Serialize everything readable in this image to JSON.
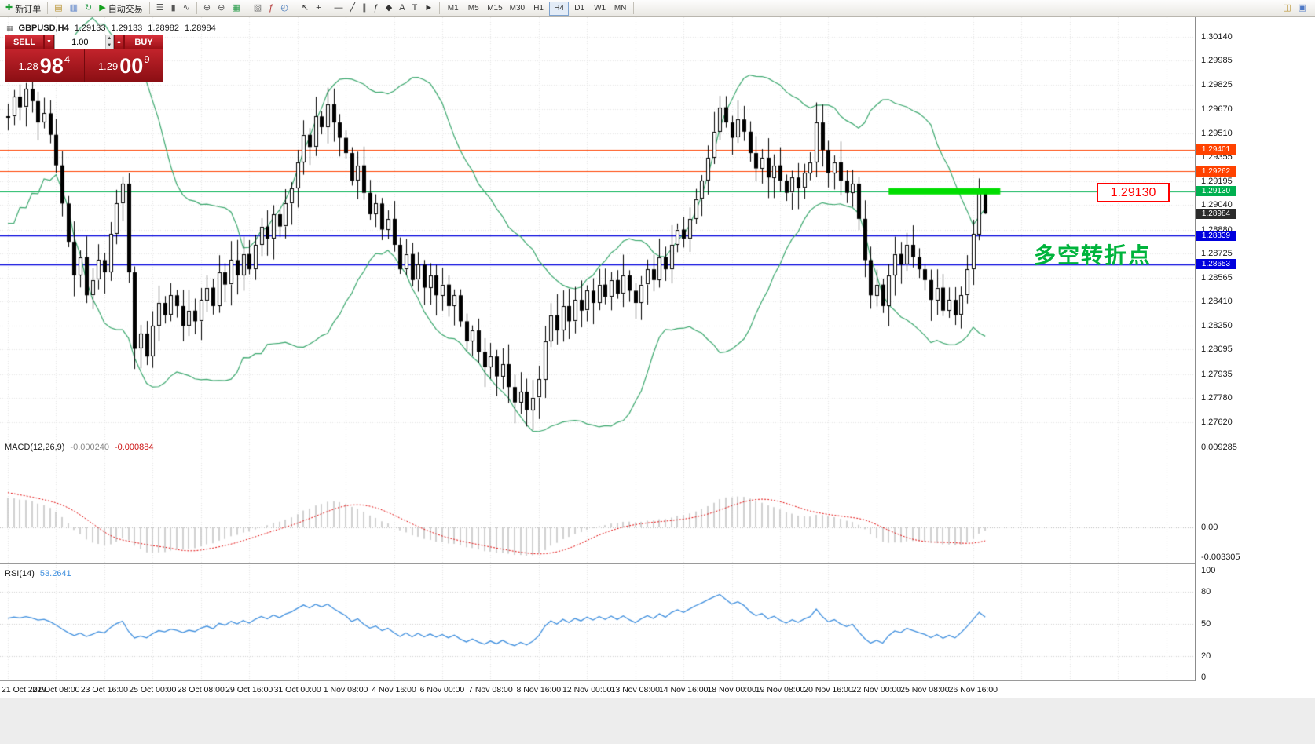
{
  "window": {
    "title": "GBPUSD,H4"
  },
  "colors": {
    "grid": "#e4e4e4",
    "candle_outline": "#000000",
    "bull_body": "#ffffff",
    "bear_body": "#000000",
    "bollinger": "#3aa76d",
    "level_orange": "#ff4200",
    "level_green": "#00b050",
    "level_blue": "#0000dd",
    "current_tag_bg": "#2b2b2b",
    "macd_histogram": "#bdbdbd",
    "macd_signal": "#e00000",
    "rsi_line": "#3f8fde",
    "highlight_green": "#00dd00",
    "annotation_green": "#00b43c",
    "callout_red": "#ff0000"
  },
  "toolbar": {
    "items": [
      {
        "name": "new-order",
        "glyph": "✚",
        "color": "#1d9e34",
        "label": "新订单"
      },
      {
        "sep": true
      },
      {
        "name": "charts-cascade",
        "glyph": "▤",
        "color": "#b8912f"
      },
      {
        "name": "profiles",
        "glyph": "▥",
        "color": "#4f79c6"
      },
      {
        "name": "refresh",
        "glyph": "↻",
        "color": "#2e9e4f"
      },
      {
        "name": "autotrade",
        "glyph": "▶",
        "color": "#15a01e",
        "label": "自动交易"
      },
      {
        "sep": true
      },
      {
        "name": "chart-bars",
        "glyph": "☰",
        "color": "#555555"
      },
      {
        "name": "chart-candles",
        "glyph": "▮",
        "color": "#555555"
      },
      {
        "name": "chart-line",
        "glyph": "∿",
        "color": "#555555"
      },
      {
        "sep": true
      },
      {
        "name": "zoom-in",
        "glyph": "⊕",
        "color": "#555555"
      },
      {
        "name": "zoom-out",
        "glyph": "⊖",
        "color": "#555555"
      },
      {
        "name": "tile-windows",
        "glyph": "▦",
        "color": "#2e9e4f"
      },
      {
        "sep": true
      },
      {
        "name": "navigator",
        "glyph": "▧",
        "color": "#777777"
      },
      {
        "name": "indicators-list",
        "glyph": "ƒ",
        "color": "#b03030"
      },
      {
        "name": "period-settings",
        "glyph": "◴",
        "color": "#3f74b8"
      },
      {
        "sep": true
      },
      {
        "name": "cursor",
        "glyph": "↖",
        "color": "#333333"
      },
      {
        "name": "crosshair",
        "glyph": "+",
        "color": "#333333"
      },
      {
        "sep": true
      },
      {
        "name": "horizontal-line",
        "glyph": "―",
        "color": "#333333"
      },
      {
        "name": "trendline",
        "glyph": "╱",
        "color": "#333333"
      },
      {
        "name": "equidistant-channel",
        "glyph": "∥",
        "color": "#333333"
      },
      {
        "name": "fibonacci",
        "glyph": "ƒ",
        "color": "#333333"
      },
      {
        "name": "shapes",
        "glyph": "◆",
        "color": "#333333"
      },
      {
        "name": "text",
        "glyph": "A",
        "color": "#333333"
      },
      {
        "name": "text-label",
        "glyph": "T",
        "color": "#333333"
      },
      {
        "name": "arrows",
        "glyph": "►",
        "color": "#333333"
      },
      {
        "sep": true
      }
    ],
    "timeframes": [
      "M1",
      "M5",
      "M15",
      "M30",
      "H1",
      "H4",
      "D1",
      "W1",
      "MN"
    ],
    "active_timeframe": "H4",
    "right_items": [
      {
        "name": "depth-of-market",
        "glyph": "◫",
        "color": "#b8912f"
      },
      {
        "name": "community",
        "glyph": "▣",
        "color": "#4f79c6"
      }
    ]
  },
  "readout": {
    "symbol": "GBPUSD,H4",
    "open": "1.29133",
    "high": "1.29133",
    "low": "1.28982",
    "close": "1.28984"
  },
  "one_click": {
    "sell_label": "SELL",
    "buy_label": "BUY",
    "lot_value": "1.00",
    "sell_dd_glyph": "▼",
    "buy_dd_glyph": "▲",
    "spin_up_glyph": "▲",
    "spin_down_glyph": "▼",
    "sell_price_small": "1.28",
    "sell_price_big": "98",
    "sell_price_sup": "4",
    "buy_price_small": "1.29",
    "buy_price_big": "00",
    "buy_price_sup": "9"
  },
  "macd": {
    "label": "MACD(12,26,9)",
    "value1": "-0.000240",
    "value2": "-0.000884",
    "scale_top": "0.009285",
    "scale_zero": "0.00",
    "scale_bottom": "-0.003305"
  },
  "rsi": {
    "label": "RSI(14)",
    "value": "53.2641",
    "scale": [
      "100",
      "80",
      "50",
      "20",
      "0"
    ]
  },
  "annotations": {
    "price_callout": "1.29130",
    "turning_point_text": "多空转折点"
  },
  "current_price_tag": "1.28984",
  "chart_data": {
    "type": "candlestick",
    "symbol": "GBPUSD",
    "timeframe": "H4",
    "price_axis_ticks": [
      "1.30140",
      "1.29985",
      "1.29825",
      "1.29670",
      "1.29510",
      "1.29355",
      "1.29195",
      "1.29040",
      "1.28880",
      "1.28725",
      "1.28565",
      "1.28410",
      "1.28250",
      "1.28095",
      "1.27935",
      "1.27780",
      "1.27620"
    ],
    "time_axis_ticks": [
      "21 Oct 2019",
      "22 Oct 08:00",
      "23 Oct 16:00",
      "25 Oct 00:00",
      "28 Oct 08:00",
      "29 Oct 16:00",
      "31 Oct 00:00",
      "1 Nov 08:00",
      "4 Nov 16:00",
      "6 Nov 00:00",
      "7 Nov 08:00",
      "8 Nov 16:00",
      "12 Nov 00:00",
      "13 Nov 08:00",
      "14 Nov 16:00",
      "18 Nov 00:00",
      "19 Nov 08:00",
      "20 Nov 16:00",
      "22 Nov 00:00",
      "25 Nov 08:00",
      "26 Nov 16:00"
    ],
    "candles_per_tick": 8,
    "closes": [
      1.2962,
      1.2975,
      1.2968,
      1.298,
      1.2972,
      1.2958,
      1.2964,
      1.295,
      1.293,
      1.2905,
      1.288,
      1.2858,
      1.287,
      1.2845,
      1.2855,
      1.2868,
      1.286,
      1.2885,
      1.2905,
      1.2918,
      1.286,
      1.281,
      1.282,
      1.2805,
      1.2825,
      1.284,
      1.2832,
      1.2845,
      1.2838,
      1.2825,
      1.2835,
      1.2828,
      1.2842,
      1.285,
      1.2838,
      1.286,
      1.2852,
      1.2868,
      1.2858,
      1.2872,
      1.2862,
      1.2878,
      1.289,
      1.2882,
      1.2898,
      1.289,
      1.2905,
      1.2915,
      1.2932,
      1.295,
      1.2942,
      1.2962,
      1.2955,
      1.297,
      1.2958,
      1.2948,
      1.2938,
      1.292,
      1.293,
      1.2912,
      1.2898,
      1.2905,
      1.2888,
      1.2895,
      1.2878,
      1.2862,
      1.2872,
      1.2855,
      1.2865,
      1.285,
      1.2858,
      1.2845,
      1.2852,
      1.2838,
      1.2845,
      1.2828,
      1.2815,
      1.2822,
      1.2808,
      1.2798,
      1.2805,
      1.2792,
      1.28,
      1.2785,
      1.2775,
      1.2782,
      1.277,
      1.2778,
      1.279,
      1.2815,
      1.2832,
      1.2822,
      1.2838,
      1.2828,
      1.2842,
      1.2835,
      1.2848,
      1.284,
      1.2852,
      1.2844,
      1.2855,
      1.2846,
      1.2858,
      1.2848,
      1.284,
      1.2852,
      1.2862,
      1.2855,
      1.287,
      1.2862,
      1.2878,
      1.2888,
      1.2882,
      1.2895,
      1.2908,
      1.292,
      1.2935,
      1.2952,
      1.2968,
      1.2958,
      1.2948,
      1.296,
      1.2952,
      1.2938,
      1.2928,
      1.2935,
      1.2922,
      1.293,
      1.292,
      1.2912,
      1.2922,
      1.2915,
      1.2925,
      1.2932,
      1.2958,
      1.294,
      1.2925,
      1.2932,
      1.292,
      1.2912,
      1.2918,
      1.2895,
      1.2868,
      1.2845,
      1.2852,
      1.2838,
      1.2858,
      1.2872,
      1.2865,
      1.2878,
      1.287,
      1.2862,
      1.2855,
      1.2842,
      1.285,
      1.2835,
      1.2842,
      1.2832,
      1.2845,
      1.2862,
      1.2885,
      1.2913,
      1.28984
    ],
    "lead_in_closes": [
      1.275,
      1.2762,
      1.2755,
      1.2772,
      1.278,
      1.277,
      1.279,
      1.28,
      1.2792,
      1.2812,
      1.282,
      1.281,
      1.2832,
      1.2845,
      1.2838,
      1.2855,
      1.2868,
      1.2858,
      1.2872,
      1.288,
      1.288,
      1.295,
      1.289,
      1.296,
      1.29,
      1.2965,
      1.2905,
      1.297,
      1.2915,
      1.2975,
      1.292,
      1.2978,
      1.293,
      1.298,
      1.294,
      1.2982,
      1.2948,
      1.2975,
      1.2955,
      1.2962
    ],
    "last_candle": {
      "open": 1.29133,
      "high": 1.29133,
      "low": 1.28982,
      "close": 1.28984
    },
    "levels": [
      {
        "price": 1.29401,
        "label": "1.29401",
        "color_key": "level_orange"
      },
      {
        "price": 1.29262,
        "label": "1.29262",
        "color_key": "level_orange"
      },
      {
        "price": 1.2913,
        "label": "1.29130",
        "color_key": "level_green"
      },
      {
        "price": 1.28839,
        "label": "1.28839",
        "color_key": "level_blue"
      },
      {
        "price": 1.28653,
        "label": "1.28653",
        "color_key": "level_blue"
      }
    ],
    "current_price": 1.28984,
    "highlight_bar": {
      "price": 1.2913,
      "from_index": 146,
      "to_index": 164.5
    },
    "indicators": {
      "bollinger": {
        "period": 20,
        "deviation": 2
      },
      "macd": {
        "fast": 12,
        "slow": 26,
        "signal": 9,
        "current_macd": -0.00024,
        "current_signal": -0.000884,
        "scale_max": 0.009285,
        "scale_min": -0.003305
      },
      "rsi": {
        "period": 14,
        "current": 53.2641,
        "levels": [
          80,
          50,
          20
        ]
      }
    }
  }
}
